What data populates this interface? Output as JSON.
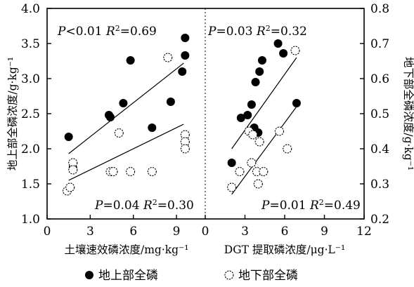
{
  "chart_data": {
    "type": "scatter",
    "legend": {
      "placement": "bottom",
      "items": [
        {
          "label": "地上部全磷",
          "marker": "filled-circle",
          "color": "#000000"
        },
        {
          "label": "地下部全磷",
          "marker": "open-circle",
          "color": "#000000"
        }
      ]
    },
    "y_left": {
      "label": "地上部全磷浓度/g·kg⁻¹",
      "range": [
        1.0,
        4.0
      ],
      "ticks": [
        "1.0",
        "1.5",
        "2.0",
        "2.5",
        "3.0",
        "3.5",
        "4.0"
      ]
    },
    "y_right": {
      "label": "地下部全磷浓度/g·kg⁻¹",
      "range": [
        0.2,
        0.8
      ],
      "ticks": [
        "0.2",
        "0.3",
        "0.4",
        "0.5",
        "0.6",
        "0.7",
        "0.8"
      ]
    },
    "panels": [
      {
        "xlabel": "土壤速效磷浓度/mg·kg⁻¹",
        "xlim": [
          0,
          11
        ],
        "xticks": [
          "0",
          "3",
          "6",
          "9"
        ],
        "annotations": {
          "above": {
            "p": "P<0.01",
            "r2": "R²=0.69"
          },
          "below": {
            "p": "P=0.04",
            "r2": "R²=0.30"
          }
        },
        "series": [
          {
            "name": "地上部全磷",
            "axis": "left",
            "points": [
              [
                1.5,
                2.17
              ],
              [
                1.8,
                1.73
              ],
              [
                4.3,
                2.48
              ],
              [
                4.4,
                2.45
              ],
              [
                5.3,
                2.65
              ],
              [
                5.8,
                3.26
              ],
              [
                7.3,
                2.3
              ],
              [
                8.6,
                2.67
              ],
              [
                9.4,
                3.1
              ],
              [
                9.6,
                3.33
              ],
              [
                9.6,
                3.58
              ]
            ],
            "trend": [
              [
                1.5,
                1.93
              ],
              [
                9.5,
                3.22
              ]
            ]
          },
          {
            "name": "地下部全磷",
            "axis": "right",
            "points": [
              [
                1.4,
                0.28
              ],
              [
                1.6,
                0.29
              ],
              [
                1.8,
                0.36
              ],
              [
                1.8,
                0.34
              ],
              [
                4.4,
                0.335
              ],
              [
                4.6,
                0.335
              ],
              [
                5.0,
                0.445
              ],
              [
                5.8,
                0.335
              ],
              [
                7.3,
                0.335
              ],
              [
                8.4,
                0.66
              ],
              [
                9.6,
                0.44
              ],
              [
                9.6,
                0.42
              ],
              [
                9.6,
                0.4
              ]
            ],
            "trend": [
              [
                1.5,
                0.31
              ],
              [
                9.5,
                0.47
              ]
            ]
          }
        ]
      },
      {
        "xlabel": "DGT 提取磷浓度/μg·L⁻¹",
        "xlim": [
          0,
          12
        ],
        "xticks": [
          "0",
          "3",
          "6",
          "9",
          "12"
        ],
        "annotations": {
          "above": {
            "p": "P=0.03",
            "r2": "R²=0.32"
          },
          "below": {
            "p": "P=0.01",
            "r2": "R²=0.49"
          }
        },
        "series": [
          {
            "name": "地上部全磷",
            "axis": "left",
            "points": [
              [
                2.0,
                1.8
              ],
              [
                2.7,
                2.44
              ],
              [
                3.2,
                2.48
              ],
              [
                3.5,
                2.63
              ],
              [
                3.7,
                2.3
              ],
              [
                3.8,
                2.95
              ],
              [
                4.0,
                2.23
              ],
              [
                4.1,
                3.1
              ],
              [
                4.3,
                3.26
              ],
              [
                5.5,
                3.5
              ],
              [
                5.9,
                3.36
              ],
              [
                6.9,
                2.65
              ]
            ],
            "trend": [
              [
                2.0,
                2.0
              ],
              [
                6.9,
                3.3
              ]
            ]
          },
          {
            "name": "地下部全磷",
            "axis": "right",
            "points": [
              [
                2.0,
                0.29
              ],
              [
                2.6,
                0.335
              ],
              [
                3.3,
                0.45
              ],
              [
                3.5,
                0.36
              ],
              [
                3.6,
                0.44
              ],
              [
                3.9,
                0.335
              ],
              [
                4.0,
                0.3
              ],
              [
                4.1,
                0.42
              ],
              [
                4.4,
                0.335
              ],
              [
                5.6,
                0.45
              ],
              [
                6.2,
                0.4
              ],
              [
                6.8,
                0.68
              ]
            ],
            "trend": [
              [
                2.0,
                0.27
              ],
              [
                6.9,
                0.52
              ]
            ]
          }
        ]
      }
    ]
  }
}
